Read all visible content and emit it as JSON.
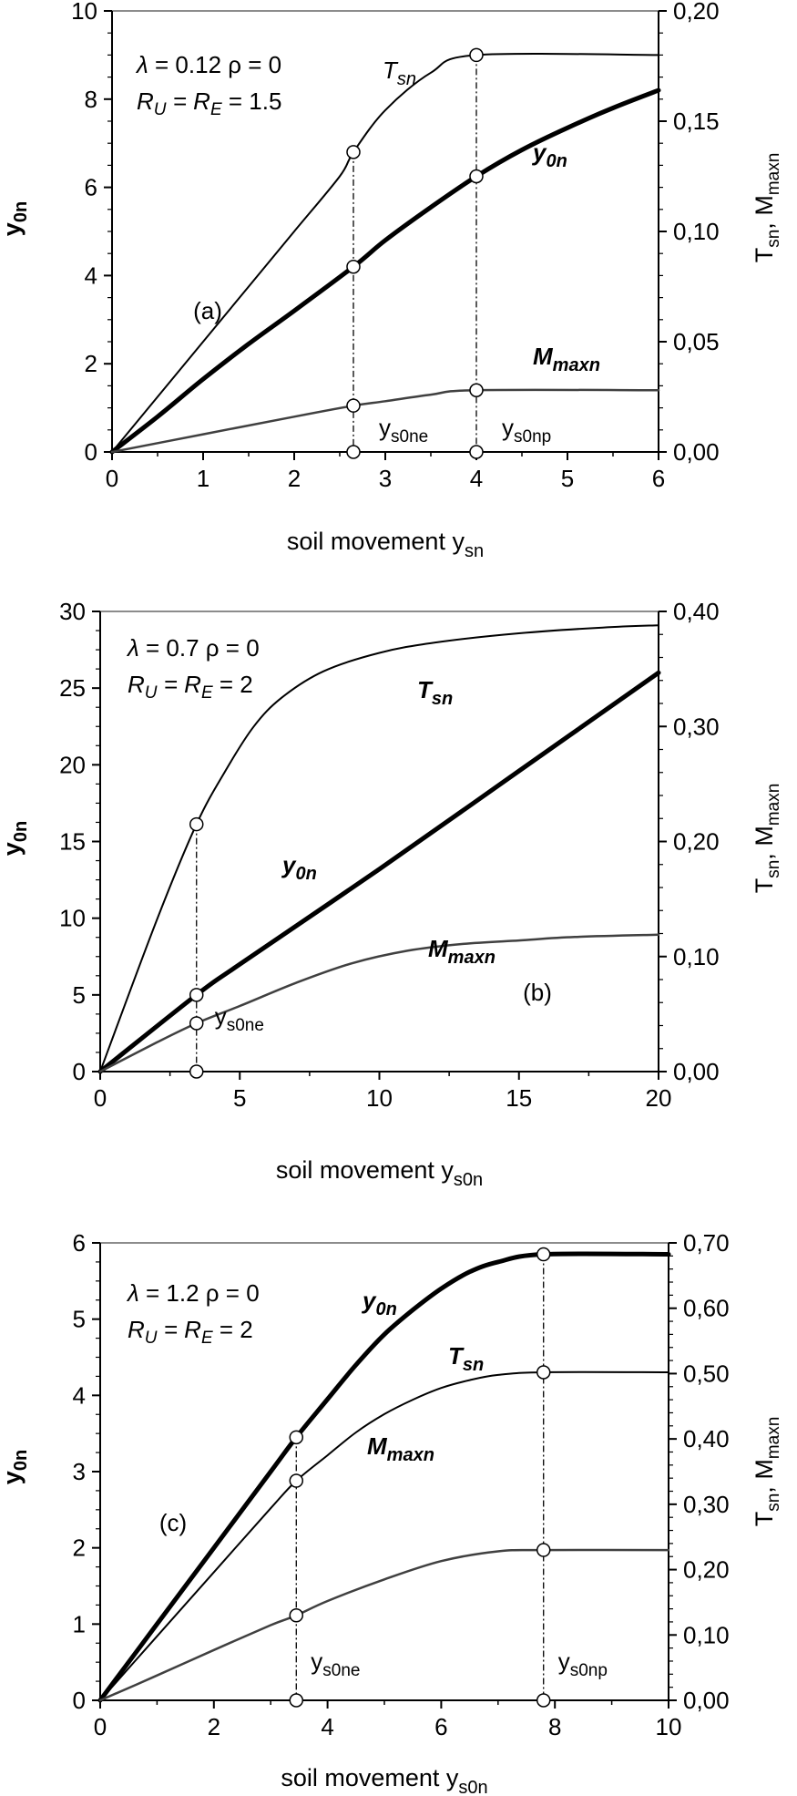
{
  "chart_data": [
    {
      "type": "line",
      "panel_label": "(a)",
      "xlabel": "soil movement",
      "xlabel_sub": "sn",
      "ylabel_left": "y",
      "ylabel_left_sub": "0n",
      "ylabel_right_parts": [
        "T",
        "sn",
        ", M",
        "maxn"
      ],
      "xlim": [
        0,
        6
      ],
      "ylim_left": [
        0,
        10
      ],
      "ylim_right": [
        0,
        0.2
      ],
      "x_ticks": [
        "0",
        "1",
        "2",
        "3",
        "4",
        "5",
        "6"
      ],
      "y_left_ticks": [
        "0",
        "2",
        "4",
        "6",
        "8",
        "10"
      ],
      "y_right_ticks": [
        "0,00",
        "0,05",
        "0,10",
        "0,15",
        "0,20"
      ],
      "params": {
        "line1": [
          "λ",
          " = 0.12 ρ = 0"
        ],
        "line2": [
          "R",
          "U",
          " = R",
          "E",
          " = 1.5"
        ]
      },
      "series": [
        {
          "name": "y0n",
          "label": [
            "y",
            "0n"
          ],
          "axis": "left",
          "color": "#000000",
          "width": 5,
          "x": [
            0,
            0.5,
            1,
            1.5,
            2,
            2.65,
            3,
            3.5,
            4,
            4.5,
            5,
            5.5,
            6
          ],
          "y": [
            0,
            0.8,
            1.65,
            2.45,
            3.2,
            4.2,
            4.8,
            5.55,
            6.25,
            6.85,
            7.35,
            7.8,
            8.2
          ]
        },
        {
          "name": "Tsn",
          "label": [
            "T",
            "sn"
          ],
          "axis": "right",
          "color": "#000000",
          "width": 2,
          "x": [
            0,
            0.5,
            1,
            1.5,
            2,
            2.5,
            2.65,
            3,
            3.5,
            4,
            6
          ],
          "y": [
            0,
            0.025,
            0.05,
            0.075,
            0.1,
            0.125,
            0.136,
            0.155,
            0.172,
            0.18,
            0.18
          ]
        },
        {
          "name": "Mmaxn",
          "label": [
            "M",
            "maxn"
          ],
          "axis": "right",
          "color": "#404040",
          "width": 2.5,
          "x": [
            0,
            1,
            2,
            2.65,
            3,
            3.5,
            4,
            6
          ],
          "y": [
            0,
            0.008,
            0.016,
            0.021,
            0.023,
            0.026,
            0.028,
            0.028
          ]
        }
      ],
      "markers": [
        {
          "x": 2.65,
          "series": [
            "y0n",
            "Tsn",
            "Mmaxn"
          ],
          "label": [
            "y",
            "s0ne"
          ]
        },
        {
          "x": 4.0,
          "series": [
            "y0n",
            "Tsn",
            "Mmaxn"
          ],
          "label": [
            "y",
            "s0np"
          ]
        }
      ]
    },
    {
      "type": "line",
      "panel_label": "(b)",
      "xlabel": "soil movement",
      "xlabel_sub": "s0n",
      "ylabel_left": "y",
      "ylabel_left_sub": "0n",
      "ylabel_right_parts": [
        "T",
        "sn",
        ", M",
        "maxn"
      ],
      "xlim": [
        0,
        20
      ],
      "ylim_left": [
        0,
        30
      ],
      "ylim_right": [
        0,
        0.4
      ],
      "x_ticks": [
        "0",
        "5",
        "10",
        "15",
        "20"
      ],
      "y_left_ticks": [
        "0",
        "5",
        "10",
        "15",
        "20",
        "25",
        "30"
      ],
      "y_right_ticks": [
        "0,00",
        "0,10",
        "0,20",
        "0,30",
        "0,40"
      ],
      "params": {
        "line1": [
          "λ",
          " = 0.7 ρ = 0"
        ],
        "line2": [
          "R",
          "U",
          " = R",
          "E",
          " = 2"
        ]
      },
      "series": [
        {
          "name": "y0n",
          "label": [
            "y",
            "0n"
          ],
          "axis": "left",
          "color": "#000000",
          "width": 5,
          "x": [
            0,
            3.45,
            5,
            10,
            15,
            20
          ],
          "y": [
            0,
            5,
            7,
            13.2,
            19.6,
            26
          ]
        },
        {
          "name": "Tsn",
          "label": [
            "T",
            "sn"
          ],
          "axis": "right",
          "color": "#000000",
          "width": 2,
          "x": [
            0,
            2,
            3.45,
            4.5,
            5.5,
            6.5,
            8,
            10,
            12,
            15,
            18,
            20
          ],
          "y": [
            0,
            0.13,
            0.215,
            0.262,
            0.3,
            0.325,
            0.348,
            0.364,
            0.373,
            0.381,
            0.386,
            0.388
          ]
        },
        {
          "name": "Mmaxn",
          "label": [
            "M",
            "maxn"
          ],
          "axis": "right",
          "color": "#404040",
          "width": 2.5,
          "x": [
            0,
            2,
            3.45,
            5,
            7,
            9,
            11,
            13,
            15,
            17,
            20
          ],
          "y": [
            0,
            0.025,
            0.042,
            0.057,
            0.077,
            0.094,
            0.105,
            0.111,
            0.114,
            0.117,
            0.119
          ]
        }
      ],
      "markers": [
        {
          "x": 3.45,
          "series": [
            "y0n",
            "Tsn",
            "Mmaxn"
          ],
          "label": [
            "y",
            "s0ne"
          ]
        }
      ]
    },
    {
      "type": "line",
      "panel_label": "(c)",
      "xlabel": "soil movement",
      "xlabel_sub": "s0n",
      "ylabel_left": "y",
      "ylabel_left_sub": "0n",
      "ylabel_right_parts": [
        "T",
        "sn",
        ", M",
        "maxn"
      ],
      "xlim": [
        0,
        10
      ],
      "ylim_left": [
        0,
        6
      ],
      "ylim_right": [
        0,
        0.7
      ],
      "x_ticks": [
        "0",
        "2",
        "4",
        "6",
        "8",
        "10"
      ],
      "y_left_ticks": [
        "0",
        "1",
        "2",
        "3",
        "4",
        "5",
        "6"
      ],
      "y_right_ticks": [
        "0,00",
        "0,10",
        "0,20",
        "0,30",
        "0,40",
        "0,50",
        "0,60",
        "0,70"
      ],
      "params": {
        "line1": [
          "λ",
          " = 1.2 ρ = 0"
        ],
        "line2": [
          "R",
          "U",
          " = R",
          "E",
          " = 2"
        ]
      },
      "series": [
        {
          "name": "y0n",
          "label": [
            "y",
            "0n"
          ],
          "axis": "left",
          "color": "#000000",
          "width": 5,
          "x": [
            0,
            1,
            2,
            3,
            3.45,
            4,
            4.5,
            5,
            5.5,
            6,
            6.5,
            7,
            7.8,
            10
          ],
          "y": [
            0,
            1,
            2,
            3,
            3.45,
            3.95,
            4.4,
            4.8,
            5.12,
            5.4,
            5.62,
            5.75,
            5.85,
            5.85
          ]
        },
        {
          "name": "Tsn",
          "label": [
            "T",
            "sn"
          ],
          "axis": "right",
          "color": "#000000",
          "width": 2,
          "x": [
            0,
            1,
            2,
            3,
            3.45,
            4,
            4.5,
            5,
            5.5,
            6,
            6.5,
            7,
            7.8,
            10
          ],
          "y": [
            0,
            0.098,
            0.196,
            0.294,
            0.336,
            0.375,
            0.41,
            0.438,
            0.46,
            0.478,
            0.49,
            0.498,
            0.502,
            0.502
          ]
        },
        {
          "name": "Mmaxn",
          "label": [
            "M",
            "maxn"
          ],
          "axis": "right",
          "color": "#404040",
          "width": 2.5,
          "x": [
            0,
            1,
            2,
            3,
            3.45,
            4,
            5,
            6,
            7,
            7.8,
            10
          ],
          "y": [
            0,
            0.038,
            0.077,
            0.115,
            0.13,
            0.152,
            0.185,
            0.213,
            0.228,
            0.23,
            0.23
          ]
        }
      ],
      "markers": [
        {
          "x": 3.45,
          "series": [
            "y0n",
            "Tsn",
            "Mmaxn"
          ],
          "label": [
            "y",
            "s0ne"
          ]
        },
        {
          "x": 7.8,
          "series": [
            "y0n",
            "Tsn",
            "Mmaxn"
          ],
          "label": [
            "y",
            "s0np"
          ]
        }
      ]
    }
  ]
}
